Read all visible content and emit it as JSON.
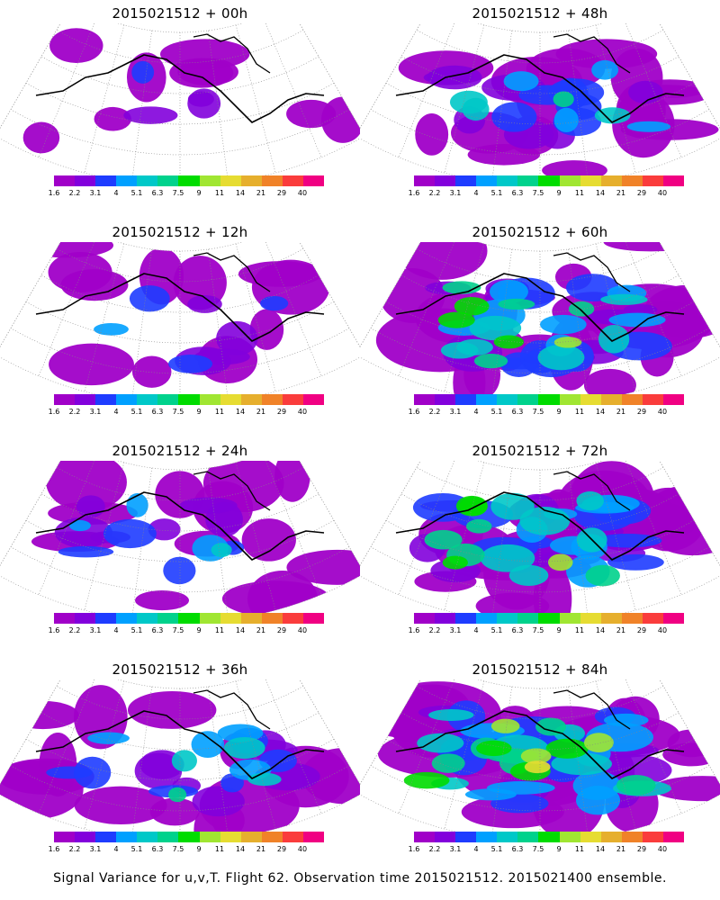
{
  "panels": [
    {
      "title": "2015021512 + 00h",
      "intensity": 0.15
    },
    {
      "title": "2015021512 + 48h",
      "intensity": 0.55
    },
    {
      "title": "2015021512 + 12h",
      "intensity": 0.3
    },
    {
      "title": "2015021512 + 60h",
      "intensity": 0.7
    },
    {
      "title": "2015021512 + 24h",
      "intensity": 0.4
    },
    {
      "title": "2015021512 + 72h",
      "intensity": 0.8
    },
    {
      "title": "2015021512 + 36h",
      "intensity": 0.45
    },
    {
      "title": "2015021512 + 84h",
      "intensity": 0.9
    }
  ],
  "colorbar": {
    "colors": [
      "#a000c8",
      "#8200dc",
      "#1e3cff",
      "#00a0ff",
      "#00c8c8",
      "#00d28c",
      "#00dc00",
      "#a0e632",
      "#e6dc32",
      "#e6af2d",
      "#f08228",
      "#fa3c3c",
      "#f00082"
    ],
    "ticks": [
      "1.6",
      "2.2",
      "3.1",
      "4",
      "5.1",
      "6.3",
      "7.5",
      "9",
      "11",
      "14",
      "21",
      "29",
      "40"
    ]
  },
  "caption": "Signal Variance for u,v,T. Flight 62. Observation time 2015021512. 2015021400 ensemble."
}
